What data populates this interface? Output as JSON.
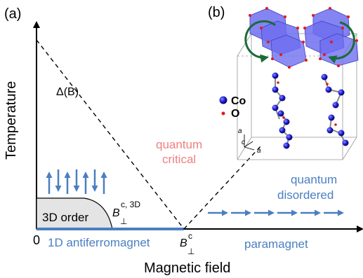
{
  "panel_a": {
    "label": "(a)",
    "ylabel": "Temperature",
    "xlabel": "Magnetic field",
    "origin": "0",
    "gap_label": "Δ(B)",
    "regions": {
      "order": "3D order",
      "critical_1": "quantum",
      "critical_2": "critical",
      "disordered_1": "quantum",
      "disordered_2": "disordered",
      "afm": "1D antiferromagnet",
      "para": "paramagnet"
    },
    "field_3d": {
      "main": "B",
      "sub": "⊥",
      "sup": "c, 3D"
    },
    "field_c": {
      "main": "B",
      "sub": "⊥",
      "sup": "c"
    }
  },
  "panel_b": {
    "label": "(b)",
    "legend": [
      {
        "label": "Co",
        "color": "#1a1ad6"
      },
      {
        "label": "O",
        "color": "#e01a1a"
      }
    ],
    "axes": {
      "a1": "a",
      "c": "c",
      "a2": "a"
    }
  },
  "colors": {
    "accent_blue": "#4a7fc1",
    "critical_pink": "#f08080",
    "order_fill": "#e4e4e4",
    "octahedron": "#6f6ff0",
    "arrow_green": "#1a6b3a"
  }
}
